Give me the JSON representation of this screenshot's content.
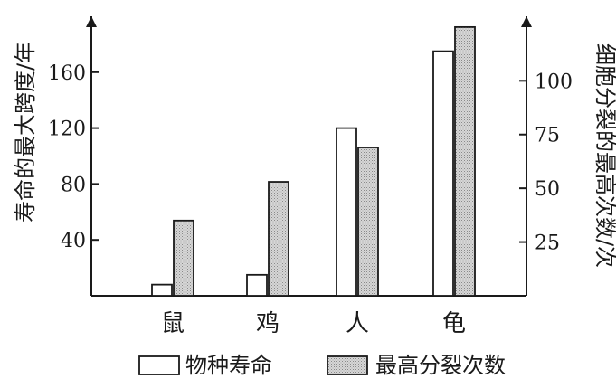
{
  "chart_data": {
    "type": "bar",
    "categories": [
      "鼠",
      "鸡",
      "人",
      "龟"
    ],
    "series": [
      {
        "name": "物种寿命",
        "axis": "left",
        "values": [
          8,
          15,
          120,
          175
        ]
      },
      {
        "name": "最高分裂次数",
        "axis": "right",
        "values": [
          35,
          53,
          69,
          125
        ]
      }
    ],
    "left_axis": {
      "label": "寿命的最大跨度/年",
      "ylim": [
        0,
        200
      ],
      "ticks": [
        40,
        80,
        120,
        160
      ]
    },
    "right_axis": {
      "label": "细胞分裂的最高次数/次",
      "ylim": [
        0,
        130
      ],
      "ticks": [
        25,
        50,
        75,
        100
      ]
    },
    "legend_placement": "bottom",
    "grid": false,
    "colors": {
      "life_fill": "#ffffff",
      "division_fill": "#d0d0d0",
      "ink": "#1a1a1a"
    }
  }
}
